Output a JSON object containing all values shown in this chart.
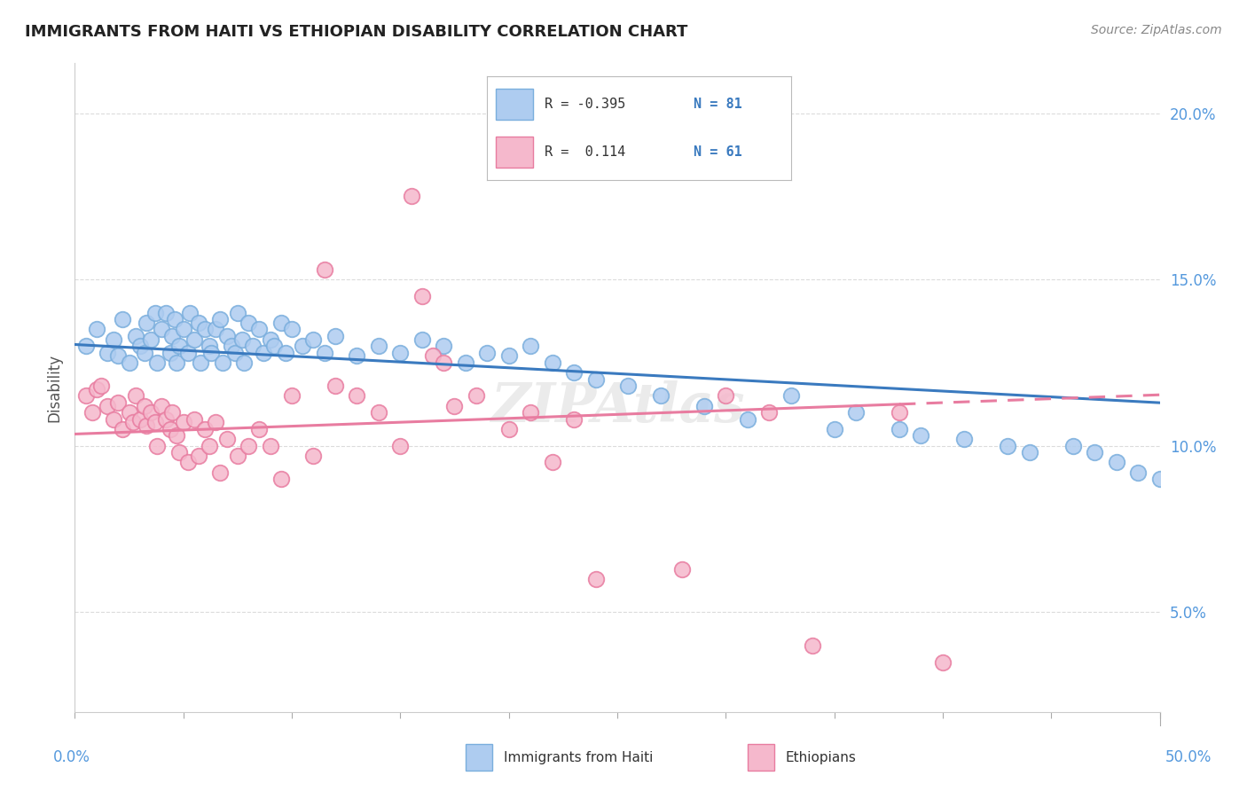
{
  "title": "IMMIGRANTS FROM HAITI VS ETHIOPIAN DISABILITY CORRELATION CHART",
  "source": "Source: ZipAtlas.com",
  "ylabel": "Disability",
  "xmin": 0.0,
  "xmax": 0.5,
  "ymin": 0.02,
  "ymax": 0.215,
  "yticks": [
    0.05,
    0.1,
    0.15,
    0.2
  ],
  "ytick_labels": [
    "5.0%",
    "10.0%",
    "15.0%",
    "20.0%"
  ],
  "haiti_R": -0.395,
  "haiti_N": 81,
  "ethiopian_R": 0.114,
  "ethiopian_N": 61,
  "haiti_color": "#aeccf0",
  "haiti_edge_color": "#7aaedd",
  "ethiopian_color": "#f5b8cc",
  "ethiopian_edge_color": "#e87ca0",
  "haiti_line_color": "#3a7abf",
  "ethiopian_line_color": "#e87ca0",
  "background_color": "#ffffff",
  "grid_color": "#cccccc",
  "title_color": "#222222",
  "watermark_color": "#dddddd",
  "haiti_scatter_x": [
    0.005,
    0.01,
    0.015,
    0.018,
    0.02,
    0.022,
    0.025,
    0.028,
    0.03,
    0.032,
    0.033,
    0.035,
    0.037,
    0.038,
    0.04,
    0.042,
    0.044,
    0.045,
    0.046,
    0.047,
    0.048,
    0.05,
    0.052,
    0.053,
    0.055,
    0.057,
    0.058,
    0.06,
    0.062,
    0.063,
    0.065,
    0.067,
    0.068,
    0.07,
    0.072,
    0.074,
    0.075,
    0.077,
    0.078,
    0.08,
    0.082,
    0.085,
    0.087,
    0.09,
    0.092,
    0.095,
    0.097,
    0.1,
    0.105,
    0.11,
    0.115,
    0.12,
    0.13,
    0.14,
    0.15,
    0.16,
    0.17,
    0.18,
    0.19,
    0.2,
    0.21,
    0.22,
    0.23,
    0.24,
    0.255,
    0.27,
    0.29,
    0.31,
    0.33,
    0.35,
    0.36,
    0.38,
    0.39,
    0.41,
    0.43,
    0.44,
    0.46,
    0.47,
    0.48,
    0.49,
    0.5
  ],
  "haiti_scatter_y": [
    0.13,
    0.135,
    0.128,
    0.132,
    0.127,
    0.138,
    0.125,
    0.133,
    0.13,
    0.128,
    0.137,
    0.132,
    0.14,
    0.125,
    0.135,
    0.14,
    0.128,
    0.133,
    0.138,
    0.125,
    0.13,
    0.135,
    0.128,
    0.14,
    0.132,
    0.137,
    0.125,
    0.135,
    0.13,
    0.128,
    0.135,
    0.138,
    0.125,
    0.133,
    0.13,
    0.128,
    0.14,
    0.132,
    0.125,
    0.137,
    0.13,
    0.135,
    0.128,
    0.132,
    0.13,
    0.137,
    0.128,
    0.135,
    0.13,
    0.132,
    0.128,
    0.133,
    0.127,
    0.13,
    0.128,
    0.132,
    0.13,
    0.125,
    0.128,
    0.127,
    0.13,
    0.125,
    0.122,
    0.12,
    0.118,
    0.115,
    0.112,
    0.108,
    0.115,
    0.105,
    0.11,
    0.105,
    0.103,
    0.102,
    0.1,
    0.098,
    0.1,
    0.098,
    0.095,
    0.092,
    0.09
  ],
  "ethiopian_scatter_x": [
    0.005,
    0.008,
    0.01,
    0.012,
    0.015,
    0.018,
    0.02,
    0.022,
    0.025,
    0.027,
    0.028,
    0.03,
    0.032,
    0.033,
    0.035,
    0.037,
    0.038,
    0.04,
    0.042,
    0.044,
    0.045,
    0.047,
    0.048,
    0.05,
    0.052,
    0.055,
    0.057,
    0.06,
    0.062,
    0.065,
    0.067,
    0.07,
    0.075,
    0.08,
    0.085,
    0.09,
    0.095,
    0.1,
    0.11,
    0.115,
    0.12,
    0.13,
    0.14,
    0.15,
    0.155,
    0.16,
    0.165,
    0.17,
    0.175,
    0.185,
    0.2,
    0.21,
    0.22,
    0.23,
    0.24,
    0.28,
    0.3,
    0.32,
    0.34,
    0.38,
    0.4
  ],
  "ethiopian_scatter_y": [
    0.115,
    0.11,
    0.117,
    0.118,
    0.112,
    0.108,
    0.113,
    0.105,
    0.11,
    0.107,
    0.115,
    0.108,
    0.112,
    0.106,
    0.11,
    0.107,
    0.1,
    0.112,
    0.108,
    0.105,
    0.11,
    0.103,
    0.098,
    0.107,
    0.095,
    0.108,
    0.097,
    0.105,
    0.1,
    0.107,
    0.092,
    0.102,
    0.097,
    0.1,
    0.105,
    0.1,
    0.09,
    0.115,
    0.097,
    0.153,
    0.118,
    0.115,
    0.11,
    0.1,
    0.175,
    0.145,
    0.127,
    0.125,
    0.112,
    0.115,
    0.105,
    0.11,
    0.095,
    0.108,
    0.06,
    0.063,
    0.115,
    0.11,
    0.04,
    0.11,
    0.035
  ],
  "legend_R1": "R = -0.395",
  "legend_N1": "N = 81",
  "legend_R2": "R =  0.114",
  "legend_N2": "N = 61"
}
